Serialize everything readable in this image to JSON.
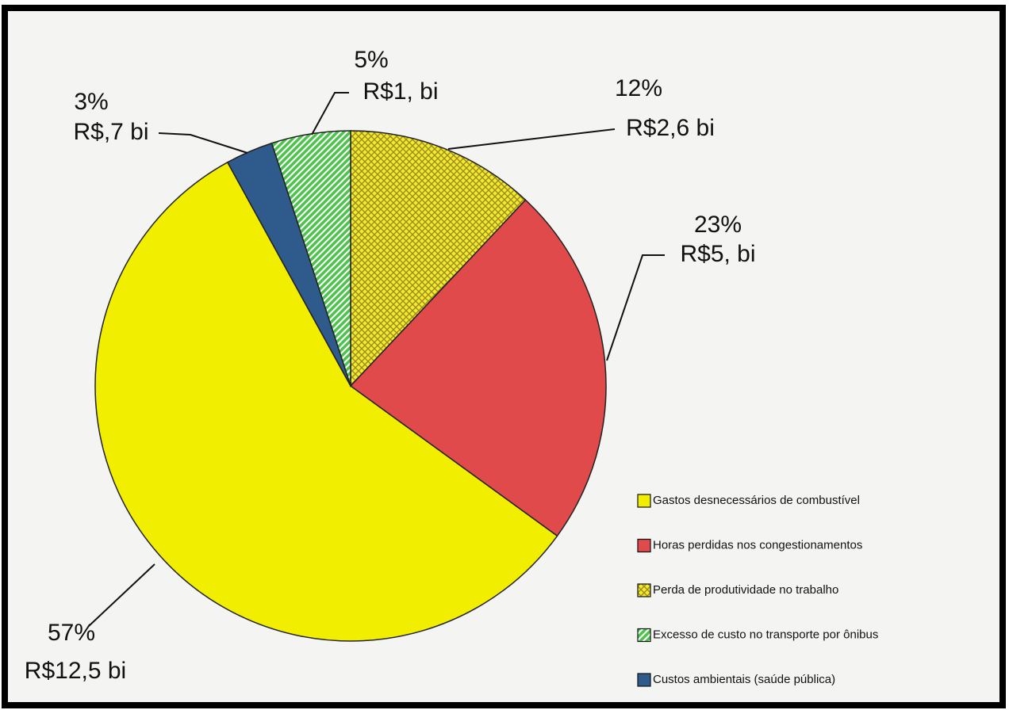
{
  "chart_data": {
    "type": "pie",
    "categories": [
      "Gastos desnecessários de combustível",
      "Horas perdidas nos congestionamentos",
      "Perda de produtividade no trabalho",
      "Excesso de custo no transporte por ônibus",
      "Custos ambientais (saúde pública)"
    ],
    "values": [
      57,
      23,
      12,
      5,
      3
    ],
    "value_labels": [
      "57%",
      "23%",
      "12%",
      "5%",
      "3%"
    ],
    "amount_labels": [
      "R$12,5 bi",
      "R$5, bi",
      "R$2,6 bi",
      "R$1, bi",
      "R$,7 bi"
    ],
    "colors": [
      "#f2ee00",
      "#e04a4a",
      "#e8e040",
      "#4cc44c",
      "#2f5a8c"
    ],
    "patterns": [
      null,
      null,
      "crosshatch",
      "stripes",
      null
    ],
    "legend": "bottom-right"
  }
}
